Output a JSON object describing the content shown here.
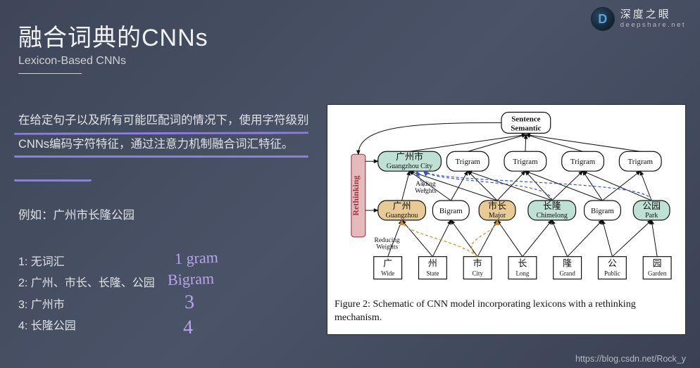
{
  "brand": {
    "name": "深度之眼",
    "domain": "deepshare.net",
    "logo_letter": "D"
  },
  "title": "融合词典的CNNs",
  "subtitle": "Lexicon-Based CNNs",
  "paragraph": "在给定句子以及所有可能匹配词的情况下，使用字符级别CNNs编码字符特征，通过注意力机制融合词汇特征。",
  "example_label": "例如：广州市长隆公园",
  "list": [
    "1: 无词汇",
    "2: 广州、市长、长隆、公园",
    "3: 广州市",
    "4: 长隆公园"
  ],
  "handwritten": {
    "l1": "1  gram",
    "l2": "Bigram",
    "l3": "3",
    "l4": "4"
  },
  "footer_url": "https://blog.csdn.net/Rock_y",
  "figure": {
    "caption": "Figure 2: Schematic of CNN model incorporating lexicons with a rethinking mechanism.",
    "rethinking_label": "Rethinking",
    "adding_label": "Adding\nWeights",
    "reducing_label": "Reducing\nWeights",
    "colors": {
      "bg": "#ffffff",
      "green_fill": "#bfe0d4",
      "orange_fill": "#e8ca96",
      "pink_fill": "#e6b9bd",
      "blue_dash": "#3a55c8",
      "orange_dash": "#d08a2a"
    },
    "top": {
      "cn": "Sentence",
      "en": "Semantic"
    },
    "trigram_row": [
      {
        "cn": "广州市",
        "en": "Guangzhou City",
        "fill": "green"
      },
      {
        "label": "Trigram"
      },
      {
        "label": "Trigram"
      },
      {
        "label": "Trigram"
      },
      {
        "label": "Trigram"
      }
    ],
    "bigram_row": [
      {
        "cn": "广州",
        "en": "Guangzhou",
        "fill": "orange"
      },
      {
        "label": "Bigram"
      },
      {
        "cn": "市长",
        "en": "Major",
        "fill": "orange"
      },
      {
        "cn": "长隆",
        "en": "Chimelong",
        "fill": "green"
      },
      {
        "label": "Bigram"
      },
      {
        "cn": "公园",
        "en": "Park",
        "fill": "green"
      }
    ],
    "char_row": [
      {
        "cn": "广",
        "en": "Wide"
      },
      {
        "cn": "州",
        "en": "State"
      },
      {
        "cn": "市",
        "en": "City"
      },
      {
        "cn": "长",
        "en": "Long"
      },
      {
        "cn": "隆",
        "en": "Grand"
      },
      {
        "cn": "公",
        "en": "Public"
      },
      {
        "cn": "园",
        "en": "Garden"
      }
    ]
  }
}
